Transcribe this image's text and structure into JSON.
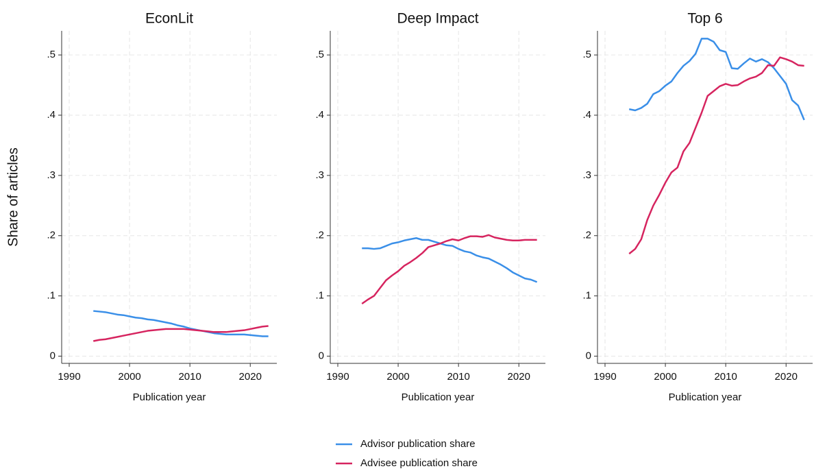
{
  "chart_data": [
    {
      "type": "line",
      "title": "EconLit",
      "ylabel": "Share of articles",
      "xlabel": "Publication year",
      "legend": "bottom",
      "grid": true,
      "x": [
        1994,
        1995,
        1996,
        1997,
        1998,
        1999,
        2000,
        2001,
        2002,
        2003,
        2004,
        2005,
        2006,
        2007,
        2008,
        2009,
        2010,
        2011,
        2012,
        2013,
        2014,
        2015,
        2016,
        2017,
        2018,
        2019,
        2020,
        2021,
        2022,
        2023
      ],
      "xlim": [
        1988.75,
        2024.4
      ],
      "xticks": [
        1990,
        2000,
        2010,
        2020
      ],
      "ylim": [
        -0.012,
        0.54
      ],
      "yticks": [
        0,
        {
          "value": 0.1,
          "label": ".1"
        },
        {
          "value": 0.2,
          "label": ".2"
        },
        {
          "value": 0.3,
          "label": ".3"
        },
        {
          "value": 0.4,
          "label": ".4"
        },
        {
          "value": 0.5,
          "label": ".5"
        }
      ],
      "series": [
        {
          "name": "Advisor publication share",
          "color": "#3a8fe8",
          "values": [
            0.075,
            0.074,
            0.073,
            0.071,
            0.069,
            0.068,
            0.066,
            0.064,
            0.063,
            0.061,
            0.06,
            0.058,
            0.056,
            0.054,
            0.051,
            0.049,
            0.046,
            0.044,
            0.042,
            0.04,
            0.038,
            0.037,
            0.036,
            0.036,
            0.036,
            0.036,
            0.035,
            0.034,
            0.033,
            0.033
          ]
        },
        {
          "name": "Advisee publication share",
          "color": "#d6245f",
          "values": [
            0.025,
            0.027,
            0.028,
            0.03,
            0.032,
            0.034,
            0.036,
            0.038,
            0.04,
            0.042,
            0.043,
            0.044,
            0.045,
            0.045,
            0.045,
            0.045,
            0.044,
            0.043,
            0.042,
            0.041,
            0.04,
            0.04,
            0.04,
            0.041,
            0.042,
            0.043,
            0.045,
            0.047,
            0.049,
            0.05
          ]
        }
      ]
    },
    {
      "type": "line",
      "title": "Deep Impact",
      "xlabel": "Publication year",
      "grid": true,
      "x": [
        1994,
        1995,
        1996,
        1997,
        1998,
        1999,
        2000,
        2001,
        2002,
        2003,
        2004,
        2005,
        2006,
        2007,
        2008,
        2009,
        2010,
        2011,
        2012,
        2013,
        2014,
        2015,
        2016,
        2017,
        2018,
        2019,
        2020,
        2021,
        2022,
        2023
      ],
      "xlim": [
        1988.75,
        2024.4
      ],
      "xticks": [
        1990,
        2000,
        2010,
        2020
      ],
      "ylim": [
        -0.012,
        0.54
      ],
      "yticks": [
        0,
        {
          "value": 0.1,
          "label": ".1"
        },
        {
          "value": 0.2,
          "label": ".2"
        },
        {
          "value": 0.3,
          "label": ".3"
        },
        {
          "value": 0.4,
          "label": ".4"
        },
        {
          "value": 0.5,
          "label": ".5"
        }
      ],
      "series": [
        {
          "name": "Advisor publication share",
          "color": "#3a8fe8",
          "values": [
            0.179,
            0.179,
            0.178,
            0.179,
            0.183,
            0.187,
            0.189,
            0.192,
            0.194,
            0.196,
            0.193,
            0.193,
            0.19,
            0.187,
            0.184,
            0.183,
            0.178,
            0.174,
            0.172,
            0.167,
            0.164,
            0.162,
            0.157,
            0.152,
            0.146,
            0.139,
            0.134,
            0.129,
            0.127,
            0.123
          ]
        },
        {
          "name": "Advisee publication share",
          "color": "#d6245f",
          "values": [
            0.087,
            0.094,
            0.1,
            0.113,
            0.126,
            0.134,
            0.141,
            0.15,
            0.156,
            0.163,
            0.171,
            0.181,
            0.184,
            0.187,
            0.191,
            0.194,
            0.192,
            0.196,
            0.199,
            0.199,
            0.198,
            0.201,
            0.197,
            0.195,
            0.193,
            0.192,
            0.192,
            0.193,
            0.193,
            0.193
          ]
        }
      ]
    },
    {
      "type": "line",
      "title": "Top 6",
      "xlabel": "Publication year",
      "grid": true,
      "x": [
        1994,
        1995,
        1996,
        1997,
        1998,
        1999,
        2000,
        2001,
        2002,
        2003,
        2004,
        2005,
        2006,
        2007,
        2008,
        2009,
        2010,
        2011,
        2012,
        2013,
        2014,
        2015,
        2016,
        2017,
        2018,
        2019,
        2020,
        2021,
        2022,
        2023
      ],
      "xlim": [
        1988.75,
        2024.4
      ],
      "xticks": [
        1990,
        2000,
        2010,
        2020
      ],
      "ylim": [
        -0.012,
        0.54
      ],
      "yticks": [
        0,
        {
          "value": 0.1,
          "label": ".1"
        },
        {
          "value": 0.2,
          "label": ".2"
        },
        {
          "value": 0.3,
          "label": ".3"
        },
        {
          "value": 0.4,
          "label": ".4"
        },
        {
          "value": 0.5,
          "label": ".5"
        }
      ],
      "series": [
        {
          "name": "Advisor publication share",
          "color": "#3a8fe8",
          "values": [
            0.41,
            0.408,
            0.412,
            0.419,
            0.435,
            0.44,
            0.449,
            0.456,
            0.47,
            0.482,
            0.49,
            0.502,
            0.527,
            0.527,
            0.522,
            0.508,
            0.505,
            0.478,
            0.477,
            0.486,
            0.494,
            0.489,
            0.493,
            0.488,
            0.478,
            0.465,
            0.452,
            0.425,
            0.416,
            0.392
          ]
        },
        {
          "name": "Advisee publication share",
          "color": "#d6245f",
          "values": [
            0.17,
            0.178,
            0.194,
            0.226,
            0.25,
            0.268,
            0.288,
            0.305,
            0.313,
            0.34,
            0.354,
            0.379,
            0.404,
            0.432,
            0.44,
            0.448,
            0.452,
            0.449,
            0.45,
            0.456,
            0.461,
            0.464,
            0.47,
            0.483,
            0.482,
            0.496,
            0.493,
            0.489,
            0.483,
            0.482
          ]
        }
      ]
    }
  ]
}
